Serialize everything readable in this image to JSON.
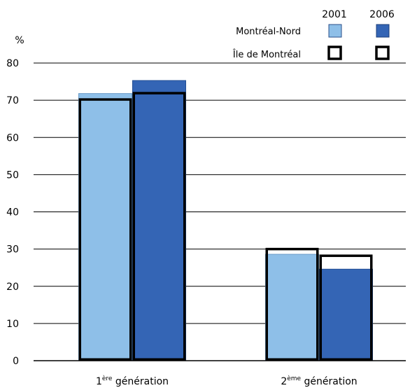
{
  "chart_data": {
    "type": "bar",
    "ylabel": "%",
    "ylim": [
      0,
      80
    ],
    "yticks": [
      0,
      10,
      20,
      30,
      40,
      50,
      60,
      70,
      80
    ],
    "grid": true,
    "categories": [
      {
        "main": "1",
        "sup": "ère",
        "rest": " génération"
      },
      {
        "main": "2",
        "sup": "ème",
        "rest": " génération"
      }
    ],
    "years": [
      "2001",
      "2006"
    ],
    "series": [
      {
        "name": "Montréal-Nord",
        "style": "filled",
        "values_2001": [
          71.8,
          28.6
        ],
        "values_2006": [
          75.3,
          24.6
        ],
        "colors": [
          "#8ebfe8",
          "#3465b5"
        ]
      },
      {
        "name": "Île de Montréal",
        "style": "outline",
        "values_2001": [
          70.2,
          30.0
        ],
        "values_2006": [
          71.9,
          28.2
        ],
        "colors": [
          "#000000",
          "#000000"
        ]
      }
    ],
    "legend_position": "top-right"
  }
}
